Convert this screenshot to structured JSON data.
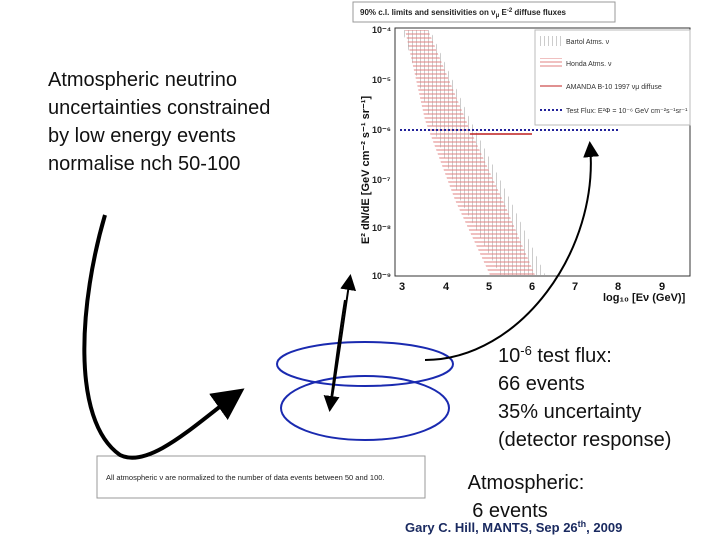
{
  "plot": {
    "title": [
      "90% c.l. limits and sensitivities on ν",
      "μ",
      " E",
      "-2",
      " diffuse fluxes"
    ],
    "y_axis_label": "E² dN/dE [GeV cm⁻² s⁻¹ sr⁻¹]",
    "x_axis_label": "log₁₀ [Eν (GeV)]",
    "yticks": [
      "10⁻⁴",
      "10⁻⁵",
      "10⁻⁶",
      "10⁻⁷",
      "10⁻⁸",
      "10⁻⁹"
    ],
    "xticks": [
      "3",
      "4",
      "5",
      "6",
      "7",
      "8",
      "9"
    ],
    "legend": [
      "Bartol Atms. ν",
      "Honda Atms. ν",
      "AMANDA B-10 1997 νμ diffuse",
      "Test Flux: E²Φ = 10⁻⁶ GeV cm⁻²s⁻¹sr⁻¹"
    ]
  },
  "notes": {
    "left": [
      "Atmospheric neutrino",
      "uncertainties constrained",
      "by low energy events",
      "normalise nch 50-100"
    ],
    "test_flux": [
      "10",
      "-6",
      " test flux:",
      "66 events",
      "35% uncertainty",
      "(detector response)"
    ],
    "atmospheric": [
      "Atmospheric:",
      "6 events"
    ]
  },
  "inset": "All atmospheric ν are normalized to the number of data events between 50 and 100.",
  "footer": [
    "Gary C. Hill, MANTS, Sep 26",
    "th",
    ", 2009"
  ]
}
